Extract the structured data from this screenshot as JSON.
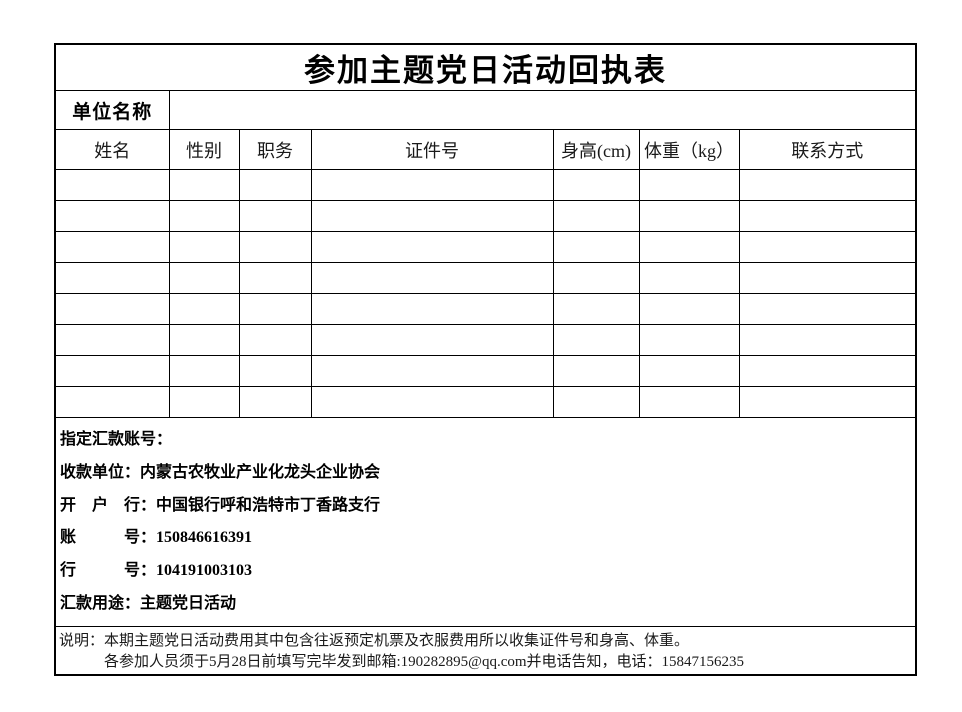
{
  "title": "参加主题党日活动回执表",
  "unit": {
    "label": "单位名称",
    "value": ""
  },
  "columns": [
    "姓名",
    "性别",
    "职务",
    "证件号",
    "身高(cm)",
    "体重（kg）",
    "联系方式"
  ],
  "empty_row_count": 8,
  "bank": {
    "lines": [
      "指定汇款账号：",
      "收款单位：内蒙古农牧业产业化龙头企业协会",
      "开　户　行：中国银行呼和浩特市丁香路支行",
      "账　　　号：150846616391",
      "行　　　号：104191003103",
      "汇款用途：主题党日活动"
    ],
    "payee": "内蒙古农牧业产业化龙头企业协会",
    "bank_name": "中国银行呼和浩特市丁香路支行",
    "account_number": "150846616391",
    "bank_number": "104191003103",
    "remittance_purpose": "主题党日活动"
  },
  "notes": {
    "line1": "说明：本期主题党日活动费用其中包含往返预定机票及衣服费用所以收集证件号和身高、体重。",
    "line2": "各参加人员须于5月28日前填写完毕发到邮箱:190282895@qq.com并电话告知，电话：15847156235",
    "email": "190282895@qq.com",
    "phone": "15847156235",
    "deadline": "5月28日"
  },
  "colors": {
    "border": "#000000",
    "text": "#000000",
    "background": "#ffffff"
  }
}
